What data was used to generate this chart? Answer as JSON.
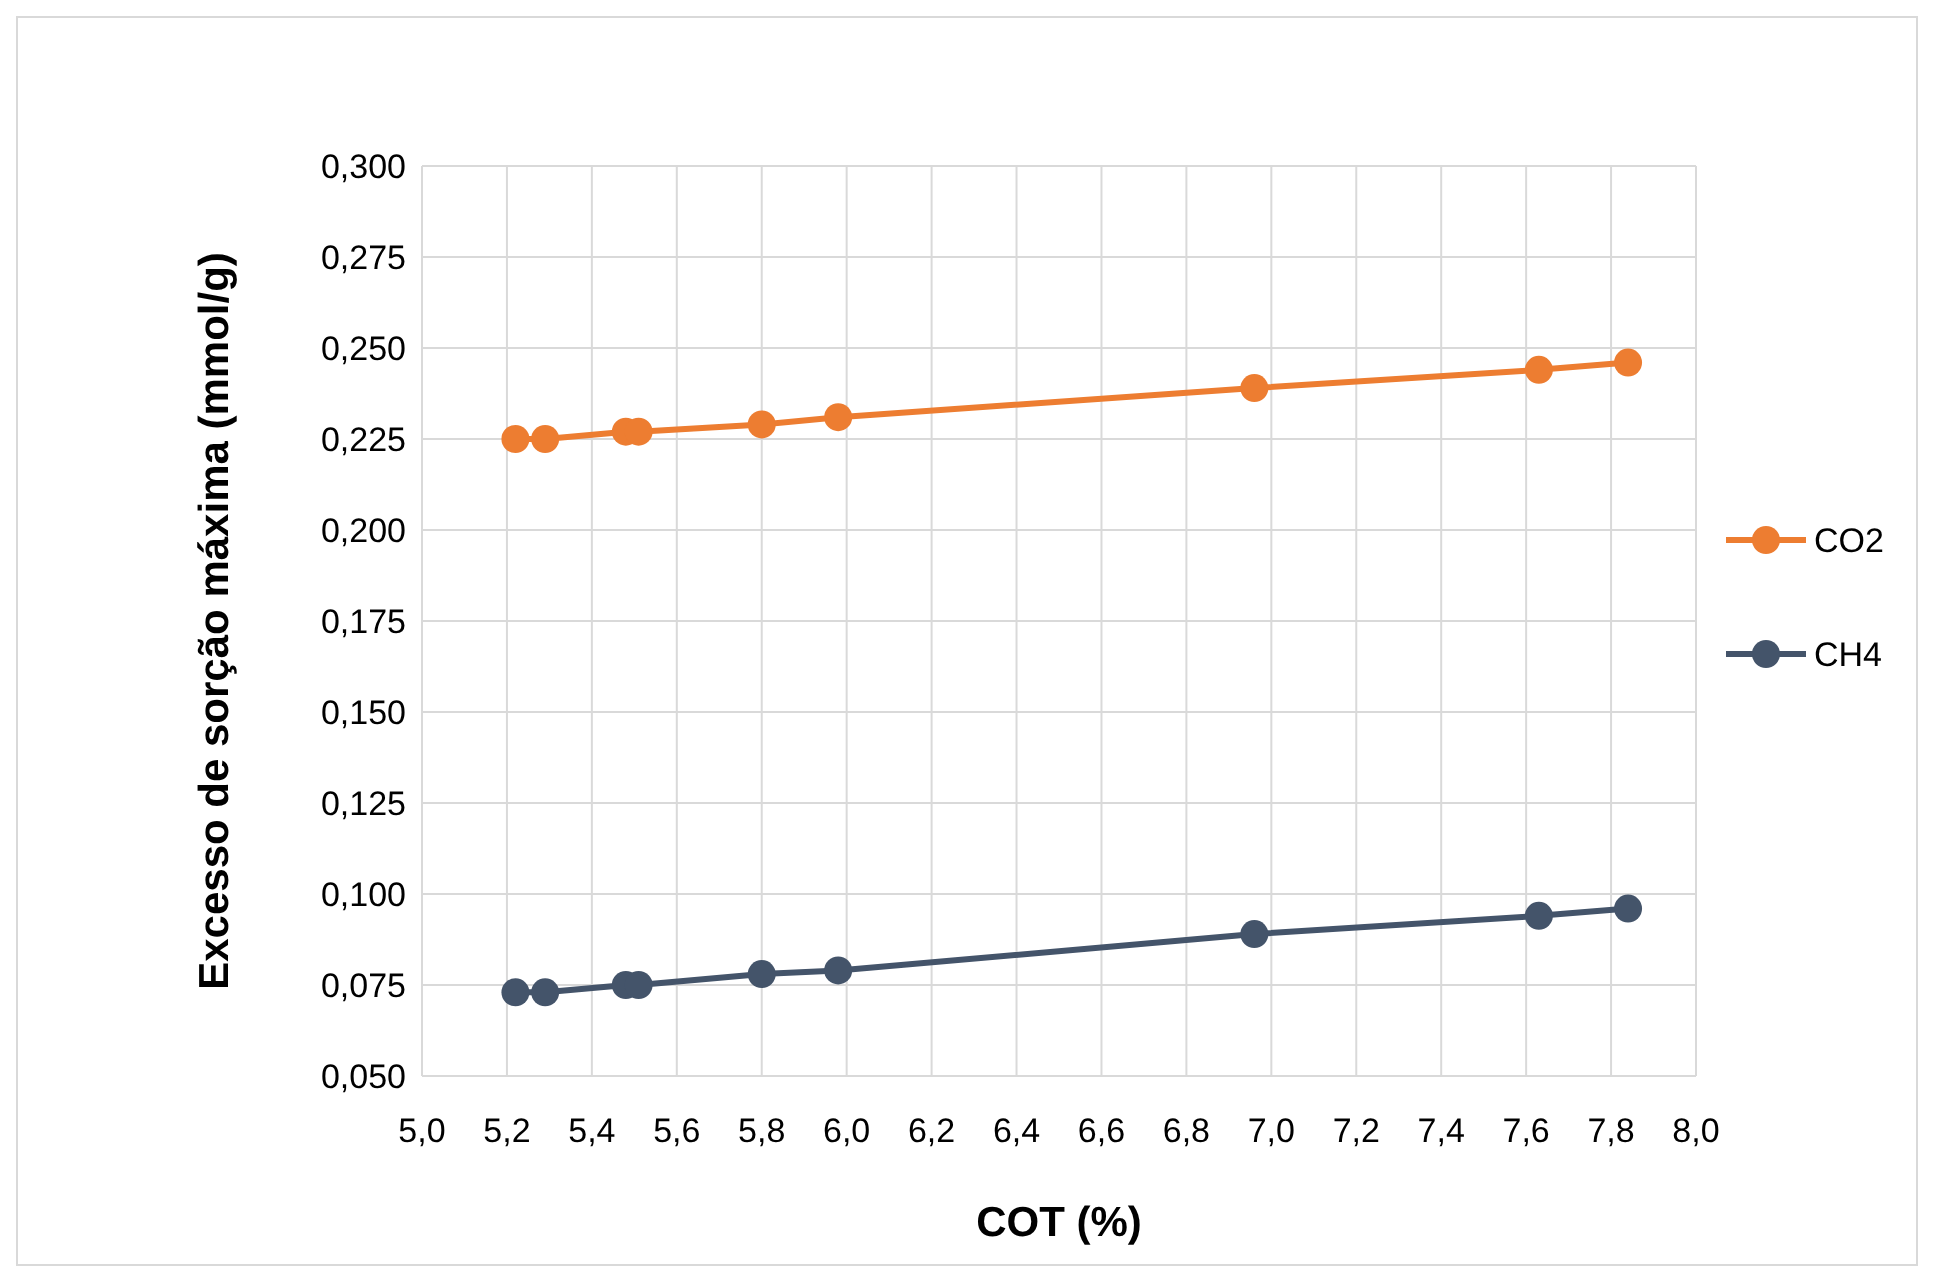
{
  "chart_data": {
    "type": "line",
    "xlabel": "COT (%)",
    "ylabel": "Excesso de sorção máxima (mmol/g)",
    "x": [
      5.22,
      5.29,
      5.48,
      5.51,
      5.8,
      5.98,
      6.96,
      7.63,
      7.84
    ],
    "series": [
      {
        "name": "CO2",
        "color": "#ed7d31",
        "values": [
          0.225,
          0.225,
          0.227,
          0.227,
          0.229,
          0.231,
          0.239,
          0.244,
          0.246
        ]
      },
      {
        "name": "CH4",
        "color": "#44546a",
        "values": [
          0.073,
          0.073,
          0.075,
          0.075,
          0.078,
          0.079,
          0.089,
          0.094,
          0.096
        ]
      }
    ],
    "xlim": [
      5.0,
      8.0
    ],
    "xticks": [
      {
        "value": 5.0,
        "label": "5,0"
      },
      {
        "value": 5.2,
        "label": "5,2"
      },
      {
        "value": 5.4,
        "label": "5,4"
      },
      {
        "value": 5.6,
        "label": "5,6"
      },
      {
        "value": 5.8,
        "label": "5,8"
      },
      {
        "value": 6.0,
        "label": "6,0"
      },
      {
        "value": 6.2,
        "label": "6,2"
      },
      {
        "value": 6.4,
        "label": "6,4"
      },
      {
        "value": 6.6,
        "label": "6,6"
      },
      {
        "value": 6.8,
        "label": "6,8"
      },
      {
        "value": 7.0,
        "label": "7,0"
      },
      {
        "value": 7.2,
        "label": "7,2"
      },
      {
        "value": 7.4,
        "label": "7,4"
      },
      {
        "value": 7.6,
        "label": "7,6"
      },
      {
        "value": 7.8,
        "label": "7,8"
      },
      {
        "value": 8.0,
        "label": "8,0"
      }
    ],
    "ylim": [
      0.05,
      0.3
    ],
    "yticks": [
      {
        "value": 0.05,
        "label": "0,050"
      },
      {
        "value": 0.075,
        "label": "0,075"
      },
      {
        "value": 0.1,
        "label": "0,100"
      },
      {
        "value": 0.125,
        "label": "0,125"
      },
      {
        "value": 0.15,
        "label": "0,150"
      },
      {
        "value": 0.175,
        "label": "0,175"
      },
      {
        "value": 0.2,
        "label": "0,200"
      },
      {
        "value": 0.225,
        "label": "0,225"
      },
      {
        "value": 0.25,
        "label": "0,250"
      },
      {
        "value": 0.275,
        "label": "0,275"
      },
      {
        "value": 0.3,
        "label": "0,300"
      }
    ],
    "grid": true,
    "legend": "right",
    "marker": "circle",
    "line_style": "solid"
  }
}
